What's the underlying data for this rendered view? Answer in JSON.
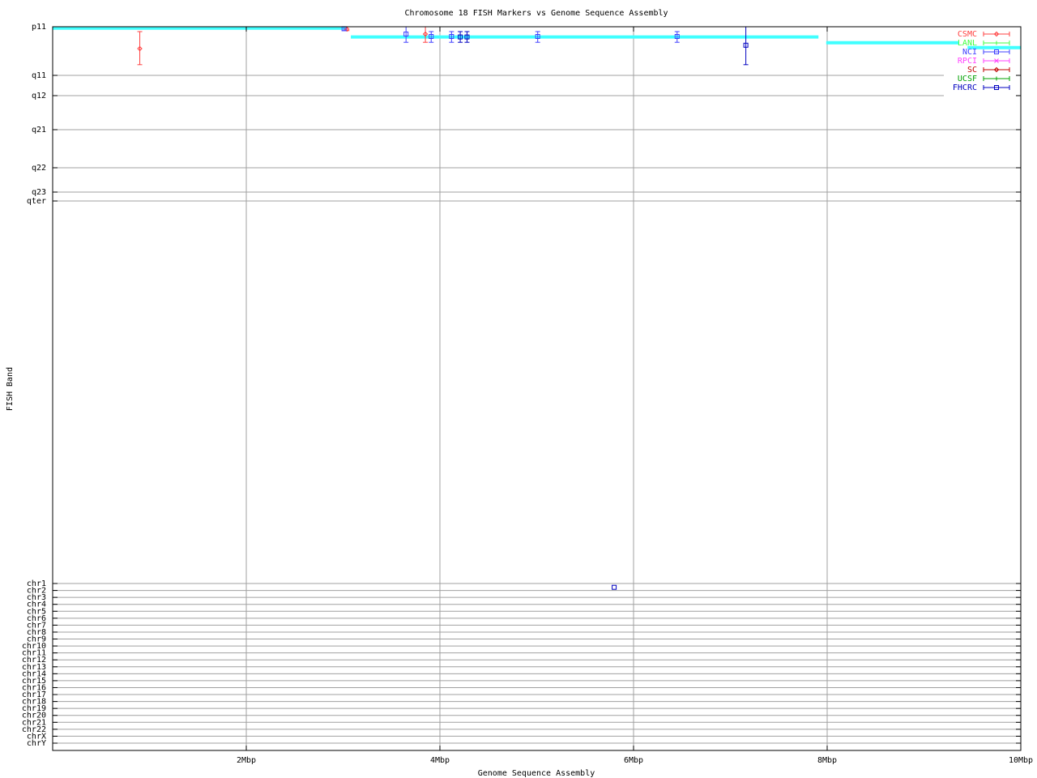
{
  "chart_data": {
    "type": "scatter",
    "title": "Chromosome 18 FISH Markers vs Genome Sequence Assembly",
    "xlabel": "Genome Sequence Assembly",
    "ylabel": "FISH Band",
    "xlim": [
      0,
      10
    ],
    "x_unit": "Mbp",
    "x_ticks": [
      {
        "value": 2,
        "label": "2Mbp"
      },
      {
        "value": 4,
        "label": "4Mbp"
      },
      {
        "value": 6,
        "label": "6Mbp"
      },
      {
        "value": 8,
        "label": "8Mbp"
      },
      {
        "value": 10,
        "label": "10Mbp"
      }
    ],
    "y_categories": [
      "p11",
      "q11",
      "q12",
      "q21",
      "q22",
      "q23",
      "qter",
      "chr1",
      "chr2",
      "chr3",
      "chr4",
      "chr5",
      "chr6",
      "chr7",
      "chr8",
      "chr9",
      "chr10",
      "chr11",
      "chr12",
      "chr13",
      "chr14",
      "chr15",
      "chr16",
      "chr17",
      "chr18",
      "chr19",
      "chr20",
      "chr21",
      "chr22",
      "chrX",
      "chrY"
    ],
    "y_note_units": "band index (0 = p11, 1 = q11, ...), fractional values lie between bands",
    "grid": true,
    "legend_position": "top-right",
    "assembly_segments": {
      "color": "#40ffff",
      "segments": [
        {
          "x": [
            0.0,
            3.03
          ],
          "y": 0.03
        },
        {
          "x": [
            3.08,
            7.91
          ],
          "y": 0.21
        },
        {
          "x": [
            7.99,
            9.36
          ],
          "y": 0.33
        },
        {
          "x": [
            9.45,
            10.0
          ],
          "y": 0.43
        }
      ]
    },
    "series": [
      {
        "name": "CSMC",
        "color": "#ff4040",
        "marker": "diamond",
        "points": [
          {
            "x": 0.9,
            "y": 0.45,
            "ylow": 0.1,
            "yhigh": 0.78
          },
          {
            "x": 3.04,
            "y": 0.05,
            "ylow": 0.0,
            "yhigh": 0.08
          },
          {
            "x": 3.85,
            "y": 0.15,
            "ylow": 0.0,
            "yhigh": 0.32
          }
        ]
      },
      {
        "name": "LANL",
        "color": "#40ff40",
        "marker": "plus",
        "points": []
      },
      {
        "name": "NCI",
        "color": "#4040ff",
        "marker": "square",
        "points": [
          {
            "x": 3.01,
            "y": 0.04,
            "ylow": 0.0,
            "yhigh": 0.08
          },
          {
            "x": 3.65,
            "y": 0.15,
            "ylow": 0.0,
            "yhigh": 0.32
          },
          {
            "x": 3.91,
            "y": 0.2,
            "ylow": 0.1,
            "yhigh": 0.32
          },
          {
            "x": 4.12,
            "y": 0.2,
            "ylow": 0.1,
            "yhigh": 0.32
          },
          {
            "x": 5.01,
            "y": 0.2,
            "ylow": 0.1,
            "yhigh": 0.32
          },
          {
            "x": 6.45,
            "y": 0.2,
            "ylow": 0.1,
            "yhigh": 0.32
          }
        ]
      },
      {
        "name": "RPCI",
        "color": "#ff40ff",
        "marker": "cross",
        "points": []
      },
      {
        "name": "SC",
        "color": "#c00000",
        "marker": "diamond",
        "points": []
      },
      {
        "name": "UCSF",
        "color": "#00a000",
        "marker": "plus",
        "points": []
      },
      {
        "name": "FHCRC",
        "color": "#0000c0",
        "marker": "square",
        "points": [
          {
            "x": 4.21,
            "y": 0.21,
            "ylow": 0.1,
            "yhigh": 0.32
          },
          {
            "x": 4.28,
            "y": 0.21,
            "ylow": 0.1,
            "yhigh": 0.32
          },
          {
            "x": 7.16,
            "y": 0.38,
            "ylow": 0.0,
            "yhigh": 0.78
          },
          {
            "x": 5.8,
            "y": 7.55,
            "ylow": 7.55,
            "yhigh": 7.55
          }
        ]
      }
    ]
  }
}
